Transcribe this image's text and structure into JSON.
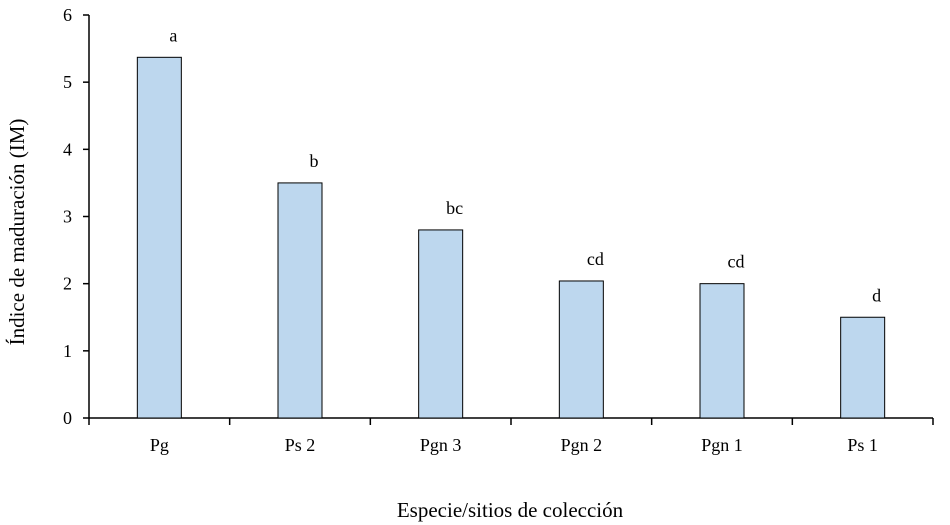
{
  "chart_data": {
    "type": "bar",
    "categories": [
      "Pg",
      "Ps 2",
      "Pgn 3",
      "Pgn 2",
      "Pgn 1",
      "Ps 1"
    ],
    "values": [
      5.37,
      3.5,
      2.8,
      2.04,
      2.0,
      1.5
    ],
    "bar_labels": [
      "a",
      "b",
      "bc",
      "cd",
      "cd",
      "d"
    ],
    "xlabel": "Especie/sitios de colección",
    "ylabel": "Índice de maduración (IM)",
    "ylim": [
      0,
      6
    ],
    "yticks": [
      0,
      1,
      2,
      3,
      4,
      5,
      6
    ],
    "grid": false,
    "bar_color": "#BDD7EE",
    "bar_edge_color": "#000000"
  }
}
